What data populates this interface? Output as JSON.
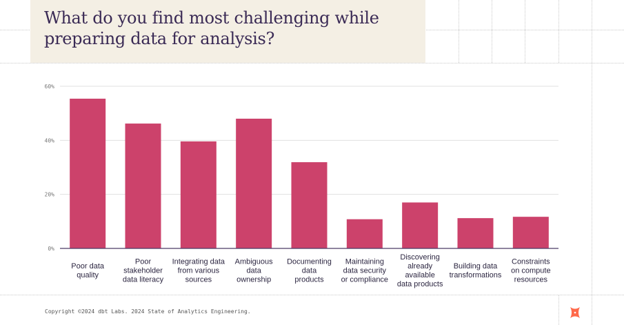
{
  "title": "What do you find most challenging while preparing data for analysis?",
  "footer": {
    "copyright": "Copyright ©2024 dbt Labs. 2024 State of Analytics Engineering.",
    "logo": "dbt-logo-icon"
  },
  "colors": {
    "bar": "#cc426b",
    "title": "#3a2a55",
    "title_background": "#f4efe4",
    "axis": "#4b3a66",
    "grid": "#e0e0e0",
    "logo": "#ff694a"
  },
  "chart_data": {
    "type": "bar",
    "title": "What do you find most challenging while preparing data for analysis?",
    "categories": [
      "Poor data\nquality",
      "Poor\nstakeholder\ndata literacy",
      "Integrating data\nfrom various\nsources",
      "Ambiguous\ndata\nownership",
      "Documenting\ndata\nproducts",
      "Maintaining\ndata security\nor compliance",
      "Discovering\nalready\navailable\ndata products",
      "Building data\ntransformations",
      "Constraints\non compute\nresources"
    ],
    "values": [
      55.4,
      46.2,
      39.6,
      48.0,
      31.9,
      10.8,
      17.0,
      11.2,
      11.7
    ],
    "unit": "%",
    "ylim": [
      0,
      60
    ],
    "yticks": [
      0,
      20,
      40,
      60
    ],
    "ytick_labels": [
      "0%",
      "20%",
      "40%",
      "60%"
    ],
    "grid": true,
    "xlabel": "",
    "ylabel": ""
  }
}
